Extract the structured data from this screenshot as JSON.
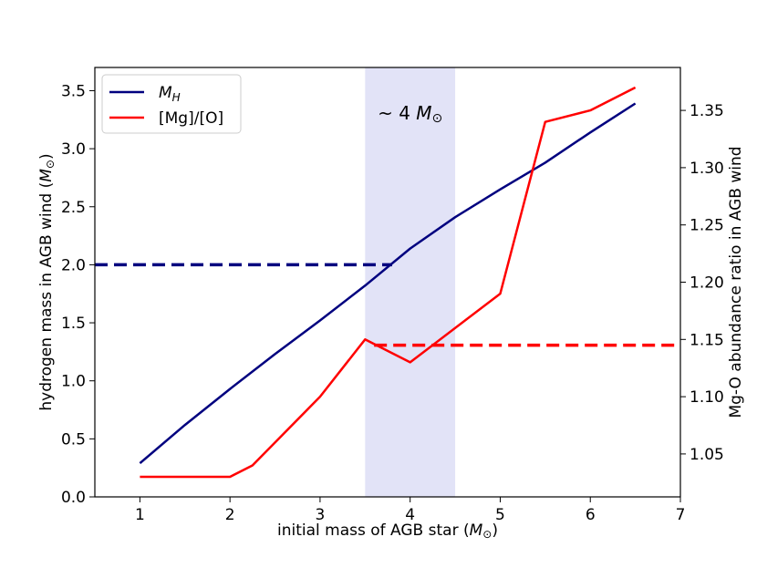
{
  "chart_data": {
    "type": "line",
    "xlabel": "initial mass of AGB star (",
    "xlabel_sym": "M",
    "xlabel_sub": "⊙",
    "xlabel_end": ")",
    "ylabel_left": "hydrogen mass in AGB wind (",
    "ylabel_left_sym": "M",
    "ylabel_left_sub": "⊙",
    "ylabel_left_end": ")",
    "ylabel_right": "Mg-O abundance ratio in AGB wind",
    "xlim": [
      0.5,
      7.0
    ],
    "ylim_left": [
      0.0,
      3.7
    ],
    "ylim_right": [
      1.0125,
      1.3875
    ],
    "x_ticks": [
      1,
      2,
      3,
      4,
      5,
      6,
      7
    ],
    "x_tick_labels": [
      "1",
      "2",
      "3",
      "4",
      "5",
      "6",
      "7"
    ],
    "y_left_ticks": [
      0.0,
      0.5,
      1.0,
      1.5,
      2.0,
      2.5,
      3.0,
      3.5
    ],
    "y_left_tick_labels": [
      "0.0",
      "0.5",
      "1.0",
      "1.5",
      "2.0",
      "2.5",
      "3.0",
      "3.5"
    ],
    "y_right_ticks": [
      1.05,
      1.1,
      1.15,
      1.2,
      1.25,
      1.3,
      1.35
    ],
    "y_right_tick_labels": [
      "1.05",
      "1.10",
      "1.15",
      "1.20",
      "1.25",
      "1.30",
      "1.35"
    ],
    "band": {
      "x0": 3.5,
      "x1": 4.5,
      "color": "#e2e3f7",
      "label_prefix": "~ 4 ",
      "label_sym": "M",
      "label_sub": "⊙"
    },
    "series": [
      {
        "name": "M",
        "name_sub": "H",
        "axis": "left",
        "color": "#00007f",
        "x": [
          1.0,
          1.5,
          2.0,
          2.5,
          3.0,
          3.5,
          4.0,
          4.5,
          5.0,
          5.5,
          6.0,
          6.5
        ],
        "y": [
          0.29,
          0.62,
          0.93,
          1.23,
          1.52,
          1.82,
          2.14,
          2.41,
          2.65,
          2.88,
          3.14,
          3.39
        ]
      },
      {
        "name": "[Mg]/[O]",
        "axis": "right",
        "color": "#ff0000",
        "x": [
          1.0,
          2.0,
          2.25,
          3.0,
          3.5,
          4.0,
          5.0,
          5.5,
          6.0,
          6.5
        ],
        "y": [
          1.03,
          1.03,
          1.04,
          1.1,
          1.15,
          1.13,
          1.19,
          1.34,
          1.35,
          1.37
        ]
      }
    ],
    "reference_lines": [
      {
        "axis": "left",
        "y": 2.0,
        "x_from": 0.5,
        "x_to": 3.8,
        "color": "#00007f",
        "style": "dashed"
      },
      {
        "axis": "right",
        "y": 1.145,
        "x_from": 3.6,
        "x_to": 7.0,
        "color": "#ff0000",
        "style": "dashed"
      }
    ],
    "legend_position": "top-left",
    "grid": false
  }
}
